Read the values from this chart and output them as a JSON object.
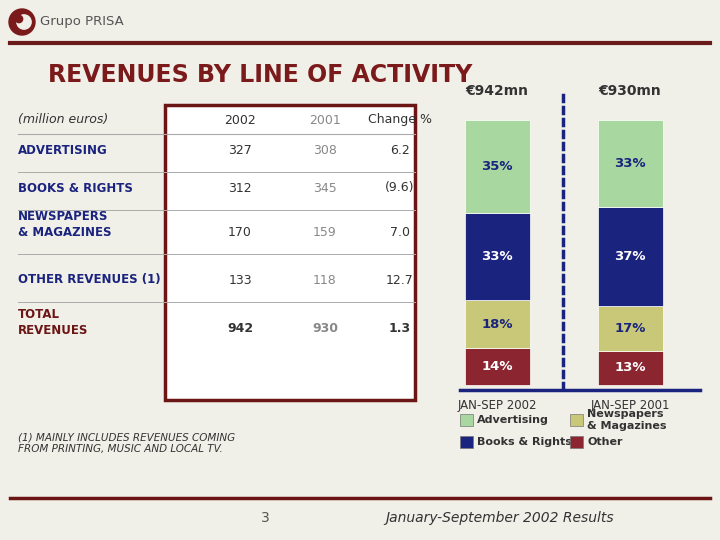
{
  "title": "REVENUES BY LINE OF ACTIVITY",
  "title_color": "#7B1A1A",
  "bg_color": "#F0EFE8",
  "header_line_color": "#6B1A1A",
  "logo_text": "Grupo PRISA",
  "table_rows": [
    {
      "label": "(million euros)",
      "val2002": "2002",
      "val2001": "2001",
      "change": "Change %",
      "is_header": true
    },
    {
      "label": "ADVERTISING",
      "val2002": "327",
      "val2001": "308",
      "change": "6.2",
      "is_header": false
    },
    {
      "label": "BOOKS & RIGHTS",
      "val2002": "312",
      "val2001": "345",
      "change": "(9.6)",
      "is_header": false
    },
    {
      "label": "NEWSPAPERS\n& MAGAZINES",
      "val2002": "170",
      "val2001": "159",
      "change": "7.0",
      "is_header": false
    },
    {
      "label": "OTHER REVENUES (1)",
      "val2002": "133",
      "val2001": "118",
      "change": "12.7",
      "is_header": false
    },
    {
      "label": "TOTAL\nREVENUES",
      "val2002": "942",
      "val2001": "930",
      "change": "1.3",
      "is_header": false
    }
  ],
  "table_border_color": "#6B1515",
  "table_text_color": "#222222",
  "table_label_color": "#1A237E",
  "bar2002_label": "JAN-SEP 2002",
  "bar2001_label": "JAN-SEP 2001",
  "bar2002_title": "€942mn",
  "bar2001_title": "€930mn",
  "bars": {
    "2002": [
      14,
      18,
      33,
      35
    ],
    "2001": [
      13,
      17,
      37,
      33
    ]
  },
  "bar_colors": [
    "#8B2530",
    "#C8C878",
    "#1A237E",
    "#A8D8A0"
  ],
  "bar_pct_labels": {
    "2002": [
      "14%",
      "18%",
      "33%",
      "35%"
    ],
    "2001": [
      "13%",
      "17%",
      "37%",
      "33%"
    ]
  },
  "bar_pct_text_colors": [
    "#FFFFFF",
    "#1A237E",
    "#FFFFFF",
    "#1A237E"
  ],
  "legend_items": [
    {
      "label": "Advertising",
      "color": "#A8D8A0"
    },
    {
      "label": "Books & Rights",
      "color": "#1A237E"
    },
    {
      "label": "Newspapers\n& Magazines",
      "color": "#C8C878"
    },
    {
      "label": "Other",
      "color": "#8B2530"
    }
  ],
  "footnote": "(1) MAINLY INCLUDES REVENUES COMING\nFROM PRINTING, MUSIC AND LOCAL TV.",
  "page_number": "3",
  "footer_text": "January-September 2002 Results",
  "footer_line_color": "#6B1515"
}
